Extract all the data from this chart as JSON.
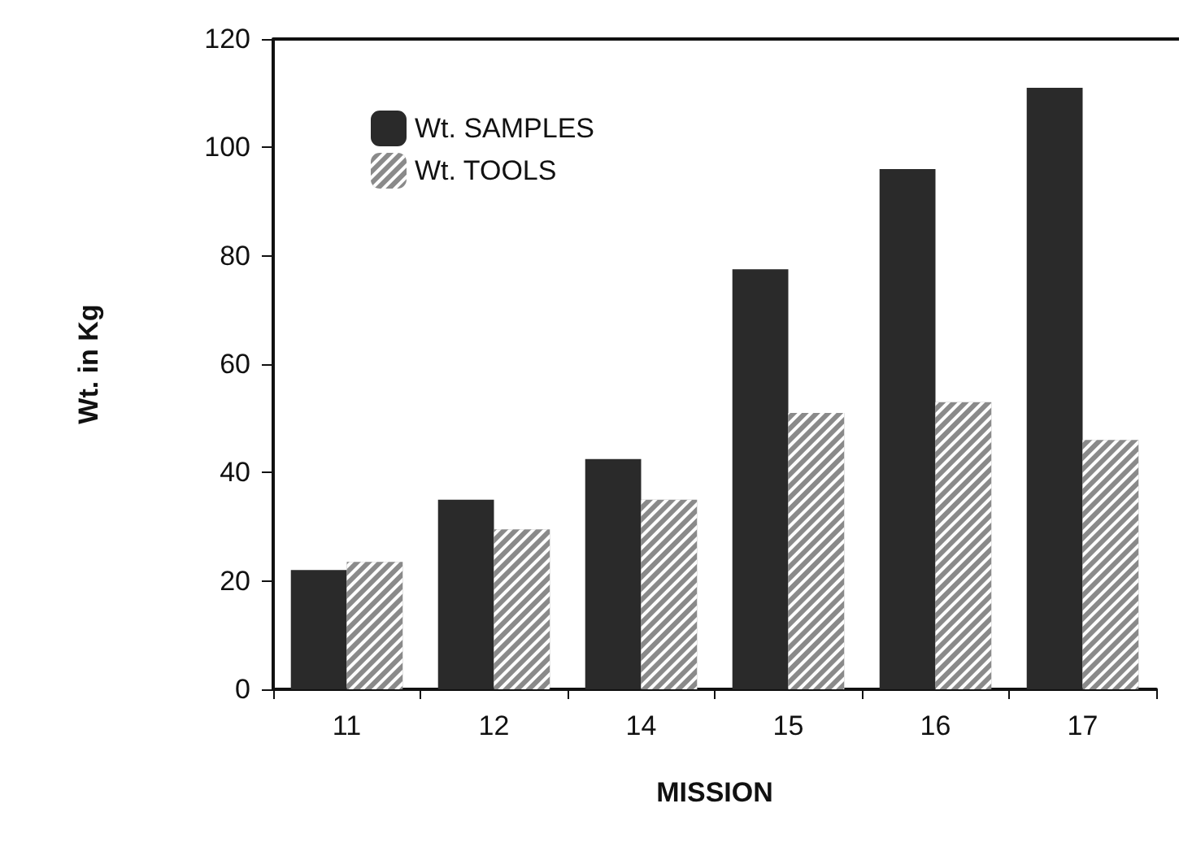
{
  "chart_data": {
    "type": "bar",
    "xlabel": "MISSION",
    "ylabel": "Wt. in Kg",
    "categories": [
      "11",
      "12",
      "14",
      "15",
      "16",
      "17"
    ],
    "series": [
      {
        "name": "Wt. SAMPLES",
        "color": "#2a2a2a",
        "values": [
          22,
          35,
          42.5,
          77.5,
          96,
          111
        ]
      },
      {
        "name": "Wt. TOOLS",
        "color": "#8a8a8a",
        "values": [
          23.5,
          29.5,
          35,
          51,
          53,
          46
        ]
      }
    ],
    "ylim": [
      0,
      120
    ],
    "yticks": [
      0,
      20,
      40,
      60,
      80,
      100,
      120
    ],
    "grid": false,
    "legend": "top left"
  }
}
